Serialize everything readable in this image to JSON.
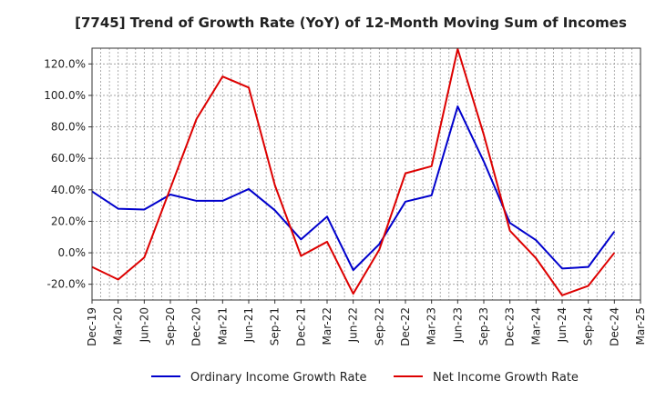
{
  "chart_data": {
    "type": "line",
    "title": "[7745]  Trend of Growth Rate (YoY) of 12-Month Moving Sum of Incomes",
    "xlabel": "",
    "ylabel": "",
    "categories": [
      "Dec-19",
      "Mar-20",
      "Jun-20",
      "Sep-20",
      "Dec-20",
      "Mar-21",
      "Jun-21",
      "Sep-21",
      "Dec-21",
      "Mar-22",
      "Jun-22",
      "Sep-22",
      "Dec-22",
      "Mar-23",
      "Jun-23",
      "Sep-23",
      "Dec-23",
      "Mar-24",
      "Jun-24",
      "Sep-24",
      "Dec-24",
      "Mar-25"
    ],
    "ylim": [
      -30,
      130
    ],
    "yticks": [
      -20,
      0,
      20,
      40,
      60,
      80,
      100,
      120
    ],
    "ytick_labels": [
      "-20.0%",
      "0.0%",
      "20.0%",
      "40.0%",
      "60.0%",
      "80.0%",
      "100.0%",
      "120.0%"
    ],
    "grid": true,
    "legend_position": "bottom",
    "series": [
      {
        "name": "Ordinary Income Growth Rate",
        "color": "#0000cc",
        "values": [
          39,
          28,
          27.5,
          37,
          33,
          33,
          40.5,
          27,
          8.5,
          23,
          -11,
          5.5,
          32.5,
          36.5,
          93,
          58,
          19,
          8,
          -10,
          -9,
          13.5,
          null
        ]
      },
      {
        "name": "Net Income Growth Rate",
        "color": "#dd0000",
        "values": [
          -9,
          -17,
          -3,
          41,
          85,
          112,
          105,
          43,
          -2,
          7,
          -26,
          2,
          50.5,
          55,
          129.5,
          75,
          14,
          -3.5,
          -27,
          -21,
          0,
          null
        ]
      }
    ]
  }
}
